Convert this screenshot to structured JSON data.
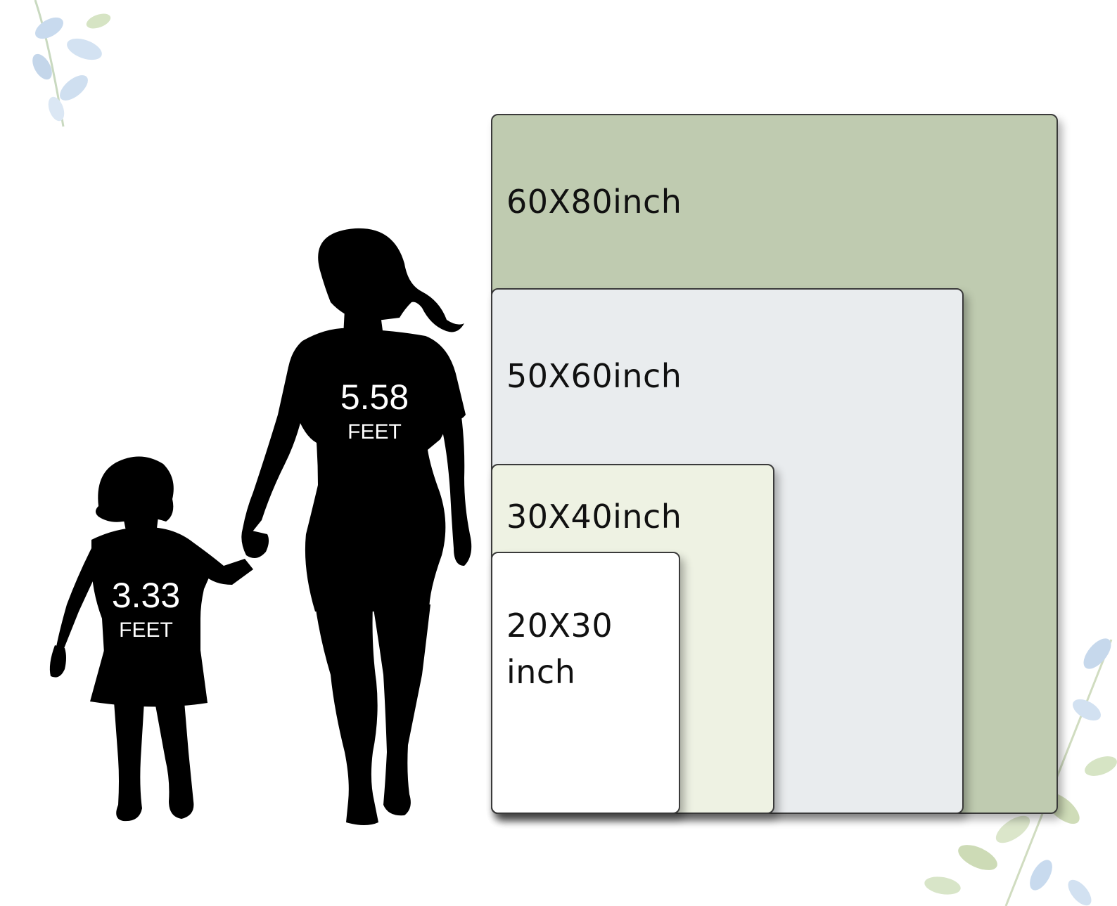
{
  "people": {
    "adult": {
      "value": "5.58",
      "unit": "FEET"
    },
    "child": {
      "value": "3.33",
      "unit": "FEET"
    }
  },
  "sizes": [
    {
      "label": "60X80inch",
      "fill": "#bfcbb0"
    },
    {
      "label": "50X60inch",
      "fill": "#e9ecee"
    },
    {
      "label": "30X40inch",
      "fill": "#eef2e3"
    },
    {
      "label": "20X30\ninch",
      "fill": "#ffffff"
    }
  ],
  "colors": {
    "silhouette": "#000000",
    "background": "#ffffff",
    "panel_border": "#3a3a3a",
    "foliage_blue": "#c4d6ea",
    "foliage_green": "#cfdcb8"
  }
}
